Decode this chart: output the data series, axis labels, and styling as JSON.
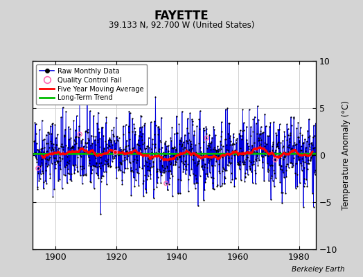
{
  "title": "FAYETTE",
  "subtitle": "39.133 N, 92.700 W (United States)",
  "ylabel": "Temperature Anomaly (°C)",
  "credit": "Berkeley Earth",
  "year_start": 1893,
  "year_end": 1987,
  "ylim": [
    -10,
    10
  ],
  "yticks": [
    -10,
    -5,
    0,
    5,
    10
  ],
  "xticks": [
    1900,
    1920,
    1940,
    1960,
    1980
  ],
  "fig_bg_color": "#d4d4d4",
  "plot_bg_color": "#ffffff",
  "raw_line_color": "#0000dd",
  "raw_dot_color": "#000000",
  "moving_avg_color": "#ff0000",
  "trend_color": "#00bb00",
  "qc_fail_color": "#ff69b4",
  "grid_color": "#c8c8c8",
  "seed": 42,
  "n_months": 1128,
  "noise_std": 2.3,
  "trend_slope": -0.002
}
